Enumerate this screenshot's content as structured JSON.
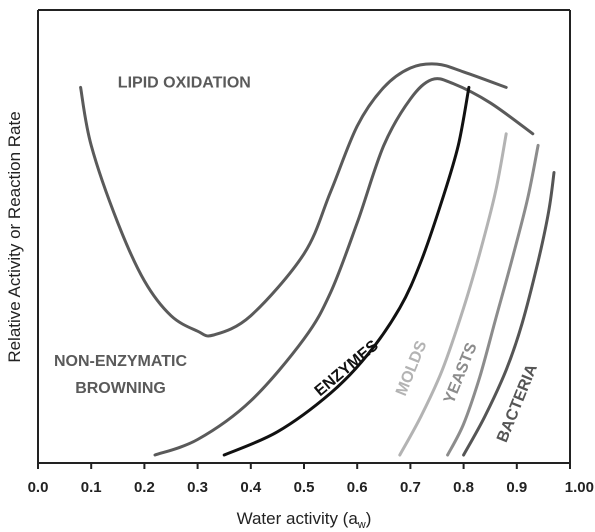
{
  "chart_data": {
    "type": "line",
    "title": "",
    "xlabel": "Water activity (a",
    "xlabel_sub": "w",
    "xlabel_close": ")",
    "ylabel": "Relative Activity or Reaction Rate",
    "xlim": [
      0.0,
      1.0
    ],
    "ylim": [
      0,
      100
    ],
    "grid": false,
    "x_ticks": [
      0.0,
      0.1,
      0.2,
      0.3,
      0.4,
      0.5,
      0.6,
      0.7,
      0.8,
      0.9,
      1.0
    ],
    "x_tick_labels": [
      "0.0",
      "0.1",
      "0.2",
      "0.3",
      "0.4",
      "0.5",
      "0.6",
      "0.7",
      "0.8",
      "0.9",
      "1.00"
    ],
    "series": [
      {
        "name": "LIPID OXIDATION",
        "color": "#5a5a5a",
        "x": [
          0.08,
          0.1,
          0.15,
          0.2,
          0.25,
          0.3,
          0.33,
          0.4,
          0.5,
          0.55,
          0.6,
          0.65,
          0.7,
          0.75,
          0.8,
          0.88
        ],
        "y": [
          95,
          80,
          60,
          45,
          36,
          32,
          31,
          36,
          52,
          68,
          85,
          95,
          100,
          101,
          99,
          95
        ]
      },
      {
        "name": "NON-ENZYMATIC BROWNING",
        "color": "#5a5a5a",
        "x": [
          0.22,
          0.3,
          0.4,
          0.5,
          0.55,
          0.6,
          0.65,
          0.7,
          0.74,
          0.78,
          0.85,
          0.93
        ],
        "y": [
          0,
          4,
          14,
          30,
          42,
          60,
          80,
          92,
          97,
          96,
          91,
          83
        ]
      },
      {
        "name": "ENZYMES",
        "color": "#111111",
        "x": [
          0.35,
          0.45,
          0.55,
          0.62,
          0.68,
          0.72,
          0.76,
          0.79,
          0.81
        ],
        "y": [
          0,
          6,
          16,
          26,
          38,
          50,
          66,
          80,
          95
        ]
      },
      {
        "name": "MOLDS",
        "color": "#b3b3b3",
        "x": [
          0.68,
          0.72,
          0.76,
          0.8,
          0.83,
          0.86,
          0.88
        ],
        "y": [
          0,
          10,
          22,
          38,
          52,
          68,
          83
        ]
      },
      {
        "name": "YEASTS",
        "color": "#8c8c8c",
        "x": [
          0.77,
          0.8,
          0.83,
          0.86,
          0.89,
          0.92,
          0.94
        ],
        "y": [
          0,
          8,
          20,
          35,
          50,
          66,
          80
        ]
      },
      {
        "name": "BACTERIA",
        "color": "#555555",
        "x": [
          0.8,
          0.84,
          0.88,
          0.91,
          0.94,
          0.96,
          0.97
        ],
        "y": [
          0,
          10,
          22,
          34,
          50,
          63,
          73
        ]
      }
    ],
    "annotations": [
      {
        "id": "lipid",
        "text": "LIPID OXIDATION",
        "color": "#5a5a5a",
        "x": 0.15,
        "y": 95,
        "rotate": 0
      },
      {
        "id": "browning1",
        "text": "NON-ENZYMATIC",
        "color": "#5a5a5a",
        "x": 0.03,
        "y": 23,
        "rotate": 0
      },
      {
        "id": "browning2",
        "text": "BROWNING",
        "color": "#5a5a5a",
        "x": 0.07,
        "y": 16,
        "rotate": 0
      },
      {
        "id": "enzymes",
        "text": "ENZYMES",
        "color": "#111111",
        "x": 0.53,
        "y": 15,
        "rotate": -40
      },
      {
        "id": "molds",
        "text": "MOLDS",
        "color": "#b3b3b3",
        "x": 0.69,
        "y": 15,
        "rotate": -68
      },
      {
        "id": "yeasts",
        "text": "YEASTS",
        "color": "#8c8c8c",
        "x": 0.78,
        "y": 13,
        "rotate": -68
      },
      {
        "id": "bacteria",
        "text": "BACTERIA",
        "color": "#555555",
        "x": 0.88,
        "y": 3,
        "rotate": -68
      }
    ]
  }
}
